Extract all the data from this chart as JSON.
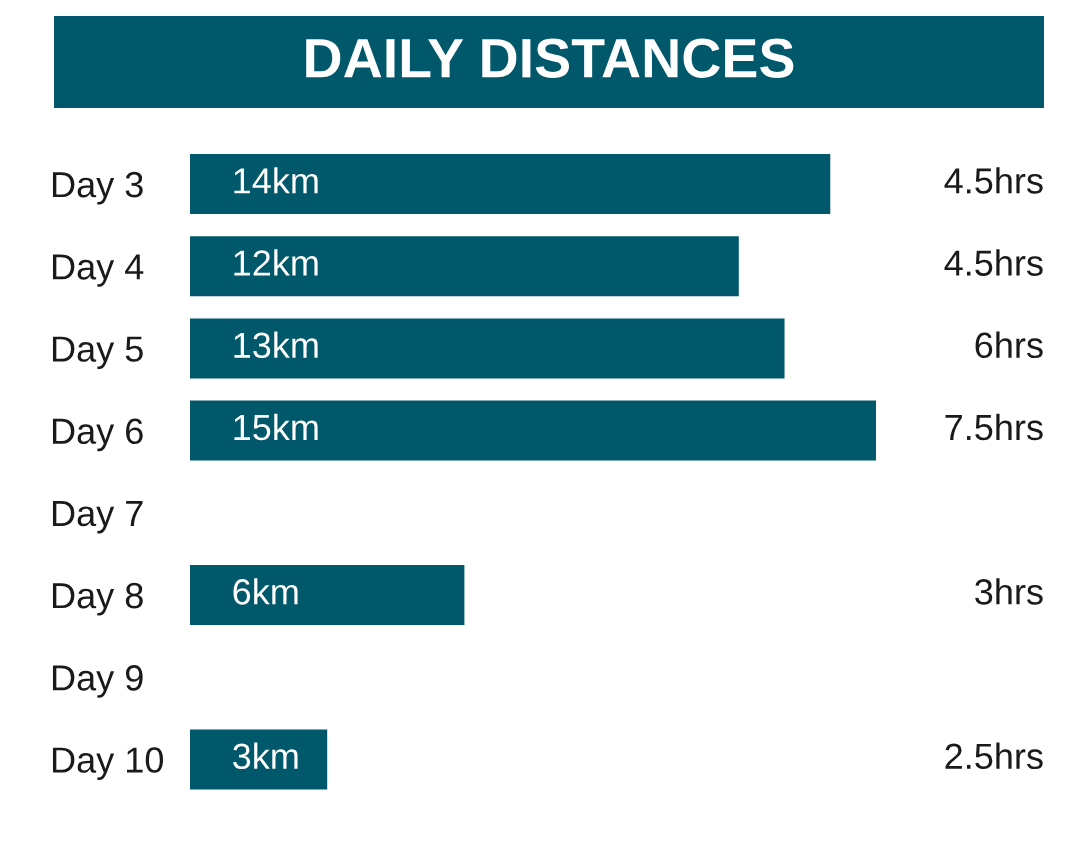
{
  "chart_data": {
    "type": "bar",
    "orientation": "horizontal",
    "title": "DAILY DISTANCES",
    "categories": [
      "Day 3",
      "Day 4",
      "Day 5",
      "Day 6",
      "Day 7",
      "Day 8",
      "Day 9",
      "Day 10"
    ],
    "values": [
      14,
      12,
      13,
      15,
      null,
      6,
      null,
      3
    ],
    "value_labels": [
      "14km",
      "12km",
      "13km",
      "15km",
      null,
      "6km",
      null,
      "3km"
    ],
    "color": "#01586b",
    "tick_labels": "y",
    "annotations": [
      "4.5hrs",
      "4.5hrs",
      "6hrs",
      "7.5hrs",
      "3hrs",
      "2.5hrs"
    ]
  }
}
